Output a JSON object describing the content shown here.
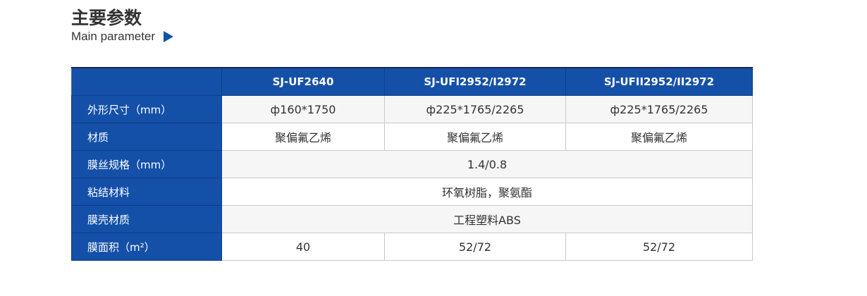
{
  "header": {
    "title": "主要参数",
    "subtitle": "Main parameter",
    "accent": "#1450a8"
  },
  "table": {
    "columns": [
      "",
      "SJ-UF2640",
      "SJ-UFI2952/I2972",
      "SJ-UFII2952/II2972"
    ],
    "rows": [
      {
        "label": "外形尺寸（mm）",
        "cells": [
          "ф160*1750",
          "ф225*1765/2265",
          "ф225*1765/2265"
        ]
      },
      {
        "label": "材质",
        "cells": [
          "聚偏氟乙烯",
          "聚偏氟乙烯",
          "聚偏氟乙烯"
        ]
      },
      {
        "label": "膜丝规格（mm）",
        "cells": [
          "1.4/0.8"
        ]
      },
      {
        "label": "粘结材料",
        "cells": [
          "环氧树脂，聚氨酯"
        ]
      },
      {
        "label": "膜壳材质",
        "cells": [
          "工程塑料ABS"
        ]
      },
      {
        "label": "膜面积（m²）",
        "cells": [
          "40",
          "52/72",
          "52/72"
        ]
      }
    ]
  }
}
